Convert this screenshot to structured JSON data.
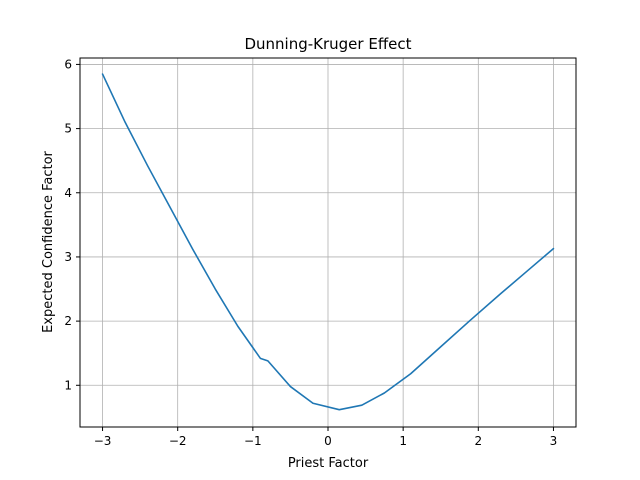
{
  "chart_data": {
    "type": "line",
    "title": "Dunning-Kruger Effect",
    "xlabel": "Priest Factor",
    "ylabel": "Expected Confidence Factor",
    "xlim": [
      -3.3,
      3.3
    ],
    "ylim": [
      0.35,
      6.1
    ],
    "xticks": [
      -3,
      -2,
      -1,
      0,
      1,
      2,
      3
    ],
    "xtick_labels": [
      "−3",
      "−2",
      "−1",
      "0",
      "1",
      "2",
      "3"
    ],
    "yticks": [
      1,
      2,
      3,
      4,
      5,
      6
    ],
    "ytick_labels": [
      "1",
      "2",
      "3",
      "4",
      "5",
      "6"
    ],
    "grid": true,
    "series": [
      {
        "color": "#1f77b4",
        "x": [
          -3.0,
          -2.7,
          -2.4,
          -2.1,
          -1.8,
          -1.5,
          -1.2,
          -0.9,
          -0.8,
          -0.5,
          -0.2,
          0.15,
          0.45,
          0.75,
          1.1,
          1.5,
          1.9,
          2.3,
          2.65,
          3.0
        ],
        "y": [
          5.85,
          5.1,
          4.42,
          3.77,
          3.12,
          2.5,
          1.92,
          1.42,
          1.38,
          0.98,
          0.72,
          0.62,
          0.69,
          0.88,
          1.18,
          1.6,
          2.02,
          2.43,
          2.78,
          3.13
        ]
      }
    ]
  }
}
